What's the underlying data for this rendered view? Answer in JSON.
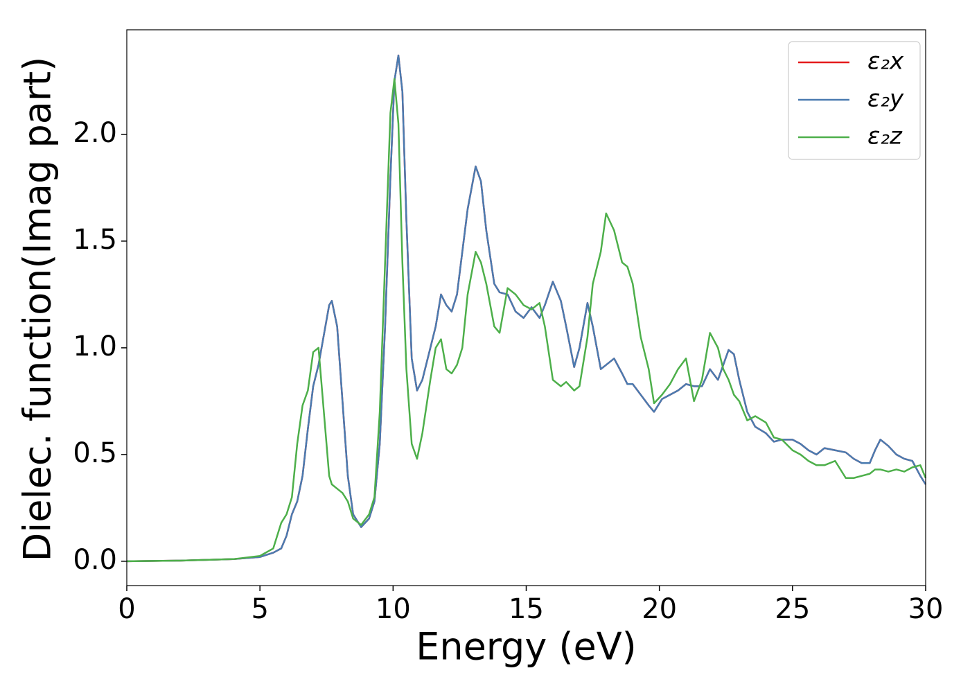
{
  "chart_data": {
    "type": "line",
    "xlabel": "Energy (eV)",
    "ylabel": "Dielec. function(Imag part)",
    "x": [
      0,
      2,
      4,
      5,
      5.5,
      5.8,
      6.0,
      6.2,
      6.4,
      6.6,
      6.8,
      7.0,
      7.2,
      7.4,
      7.6,
      7.7,
      7.9,
      8.1,
      8.3,
      8.5,
      8.8,
      9.1,
      9.3,
      9.5,
      9.7,
      9.9,
      10.05,
      10.2,
      10.35,
      10.5,
      10.7,
      10.9,
      11.1,
      11.4,
      11.6,
      11.8,
      12.0,
      12.2,
      12.4,
      12.6,
      12.8,
      13.1,
      13.3,
      13.5,
      13.8,
      14.0,
      14.3,
      14.6,
      14.9,
      15.2,
      15.5,
      15.7,
      16.0,
      16.3,
      16.5,
      16.8,
      17.0,
      17.3,
      17.5,
      17.8,
      18.0,
      18.3,
      18.6,
      18.8,
      19.0,
      19.3,
      19.6,
      19.8,
      20.1,
      20.4,
      20.7,
      21.0,
      21.3,
      21.6,
      21.9,
      22.2,
      22.4,
      22.6,
      22.8,
      23.0,
      23.3,
      23.6,
      24.0,
      24.3,
      24.6,
      25.0,
      25.3,
      25.6,
      25.9,
      26.2,
      26.6,
      27.0,
      27.3,
      27.6,
      27.9,
      28.1,
      28.3,
      28.6,
      28.9,
      29.2,
      29.5,
      29.8,
      30.0
    ],
    "series": [
      {
        "name": "ε₂x",
        "color": "#e41a1c",
        "values": [
          0,
          0.003,
          0.01,
          0.02,
          0.04,
          0.06,
          0.12,
          0.22,
          0.28,
          0.4,
          0.62,
          0.82,
          0.92,
          1.06,
          1.2,
          1.22,
          1.1,
          0.75,
          0.4,
          0.22,
          0.16,
          0.2,
          0.28,
          0.55,
          1.1,
          1.8,
          2.25,
          2.37,
          2.2,
          1.6,
          0.95,
          0.8,
          0.85,
          1.0,
          1.1,
          1.25,
          1.2,
          1.17,
          1.25,
          1.45,
          1.65,
          1.85,
          1.78,
          1.55,
          1.3,
          1.26,
          1.25,
          1.17,
          1.14,
          1.19,
          1.14,
          1.2,
          1.31,
          1.22,
          1.1,
          0.91,
          1.0,
          1.21,
          1.1,
          0.9,
          0.92,
          0.95,
          0.88,
          0.83,
          0.83,
          0.78,
          0.73,
          0.7,
          0.76,
          0.78,
          0.8,
          0.83,
          0.82,
          0.82,
          0.9,
          0.85,
          0.92,
          0.99,
          0.97,
          0.85,
          0.7,
          0.63,
          0.6,
          0.56,
          0.57,
          0.57,
          0.55,
          0.52,
          0.5,
          0.53,
          0.52,
          0.51,
          0.48,
          0.46,
          0.46,
          0.52,
          0.57,
          0.54,
          0.5,
          0.48,
          0.47,
          0.4,
          0.36
        ]
      },
      {
        "name": "ε₂y",
        "color": "#4a7bb0",
        "values": [
          0,
          0.003,
          0.01,
          0.02,
          0.04,
          0.06,
          0.12,
          0.22,
          0.28,
          0.4,
          0.62,
          0.82,
          0.92,
          1.06,
          1.2,
          1.22,
          1.1,
          0.75,
          0.4,
          0.22,
          0.16,
          0.2,
          0.28,
          0.55,
          1.1,
          1.8,
          2.25,
          2.37,
          2.2,
          1.6,
          0.95,
          0.8,
          0.85,
          1.0,
          1.1,
          1.25,
          1.2,
          1.17,
          1.25,
          1.45,
          1.65,
          1.85,
          1.78,
          1.55,
          1.3,
          1.26,
          1.25,
          1.17,
          1.14,
          1.19,
          1.14,
          1.2,
          1.31,
          1.22,
          1.1,
          0.91,
          1.0,
          1.21,
          1.1,
          0.9,
          0.92,
          0.95,
          0.88,
          0.83,
          0.83,
          0.78,
          0.73,
          0.7,
          0.76,
          0.78,
          0.8,
          0.83,
          0.82,
          0.82,
          0.9,
          0.85,
          0.92,
          0.99,
          0.97,
          0.85,
          0.7,
          0.63,
          0.6,
          0.56,
          0.57,
          0.57,
          0.55,
          0.52,
          0.5,
          0.53,
          0.52,
          0.51,
          0.48,
          0.46,
          0.46,
          0.52,
          0.57,
          0.54,
          0.5,
          0.48,
          0.47,
          0.4,
          0.36
        ]
      },
      {
        "name": "ε₂z",
        "color": "#4daf4a",
        "values": [
          0,
          0.003,
          0.01,
          0.025,
          0.06,
          0.18,
          0.22,
          0.3,
          0.55,
          0.73,
          0.8,
          0.98,
          1.0,
          0.7,
          0.4,
          0.36,
          0.34,
          0.32,
          0.28,
          0.2,
          0.17,
          0.22,
          0.3,
          0.7,
          1.4,
          2.1,
          2.26,
          2.05,
          1.4,
          0.9,
          0.55,
          0.48,
          0.6,
          0.85,
          1.0,
          1.04,
          0.9,
          0.88,
          0.92,
          1.0,
          1.25,
          1.45,
          1.4,
          1.3,
          1.1,
          1.07,
          1.28,
          1.25,
          1.2,
          1.18,
          1.21,
          1.1,
          0.85,
          0.82,
          0.84,
          0.8,
          0.82,
          1.05,
          1.3,
          1.45,
          1.63,
          1.55,
          1.4,
          1.38,
          1.3,
          1.05,
          0.9,
          0.74,
          0.78,
          0.83,
          0.9,
          0.95,
          0.75,
          0.85,
          1.07,
          1.0,
          0.9,
          0.85,
          0.78,
          0.75,
          0.66,
          0.68,
          0.65,
          0.58,
          0.57,
          0.52,
          0.5,
          0.47,
          0.45,
          0.45,
          0.47,
          0.39,
          0.39,
          0.4,
          0.41,
          0.43,
          0.43,
          0.42,
          0.43,
          0.42,
          0.44,
          0.45,
          0.39
        ]
      }
    ],
    "xlim": [
      0,
      30
    ],
    "ylim": [
      -0.114,
      2.49
    ],
    "xticks": [
      0,
      5,
      10,
      15,
      20,
      25,
      30
    ],
    "yticks": [
      {
        "value": 0,
        "label": "0.0"
      },
      0.5,
      {
        "value": 1,
        "label": "1.0"
      },
      1.5,
      {
        "value": 2,
        "label": "2.0"
      }
    ],
    "legend": "upper right",
    "grid": false
  }
}
